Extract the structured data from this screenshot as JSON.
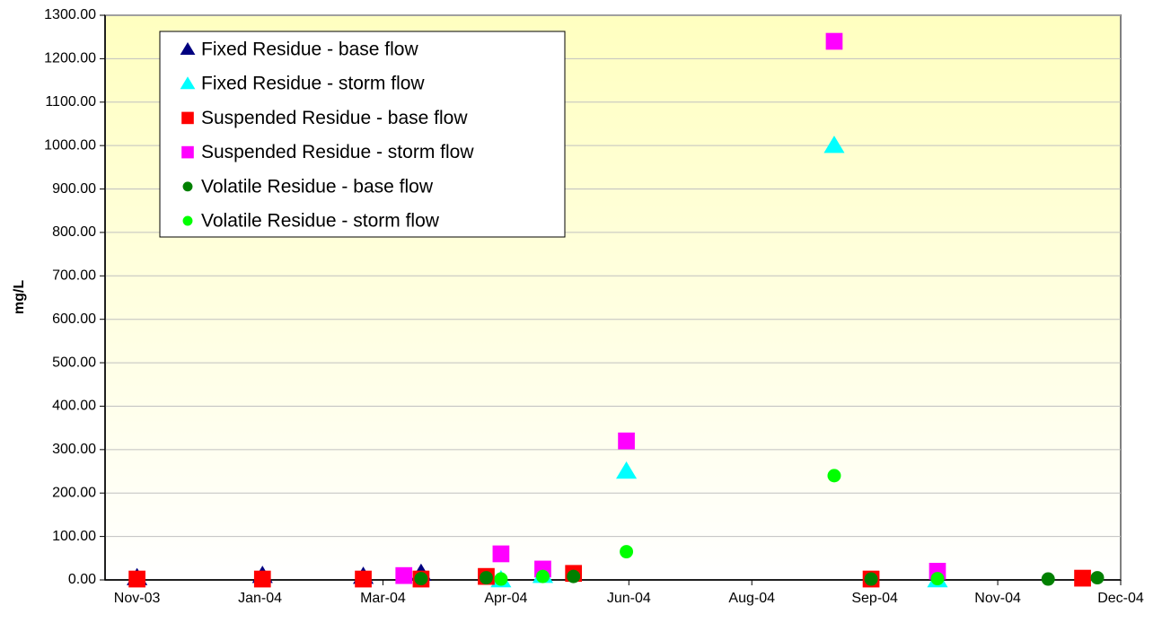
{
  "chart_data": {
    "type": "scatter",
    "ylabel": "mg/L",
    "xlim": [
      -0.26,
      8
    ],
    "xticks": [
      {
        "value": 0,
        "label": "Nov-03"
      },
      {
        "value": 1,
        "label": "Jan-04"
      },
      {
        "value": 2,
        "label": "Mar-04"
      },
      {
        "value": 3,
        "label": "Apr-04"
      },
      {
        "value": 4,
        "label": "Jun-04"
      },
      {
        "value": 5,
        "label": "Aug-04"
      },
      {
        "value": 6,
        "label": "Sep-04"
      },
      {
        "value": 7,
        "label": "Nov-04"
      },
      {
        "value": 8,
        "label": "Dec-04"
      }
    ],
    "ylim": [
      0,
      1300
    ],
    "yticks": [
      {
        "value": 0,
        "label": "0.00"
      },
      {
        "value": 100,
        "label": "100.00"
      },
      {
        "value": 200,
        "label": "200.00"
      },
      {
        "value": 300,
        "label": "300.00"
      },
      {
        "value": 400,
        "label": "400.00"
      },
      {
        "value": 500,
        "label": "500.00"
      },
      {
        "value": 600,
        "label": "600.00"
      },
      {
        "value": 700,
        "label": "700.00"
      },
      {
        "value": 800,
        "label": "800.00"
      },
      {
        "value": 900,
        "label": "900.00"
      },
      {
        "value": 1000,
        "label": "1000.00"
      },
      {
        "value": 1100,
        "label": "1100.00"
      },
      {
        "value": 1200,
        "label": "1200.00"
      },
      {
        "value": 1300,
        "label": "1300.00"
      }
    ],
    "grid": true,
    "legend": "upper left",
    "series": [
      {
        "name": "Fixed Residue - base flow",
        "color": "#000080",
        "marker": "triangle",
        "x": [
          0,
          1.02,
          1.84,
          2.31
        ],
        "values": [
          5,
          10,
          8,
          15
        ]
      },
      {
        "name": "Fixed Residue - storm flow",
        "color": "#00ffff",
        "marker": "triangle",
        "x": [
          2.96,
          3.3,
          3.98,
          5.67,
          6.51
        ],
        "values": [
          0,
          10,
          250,
          1000,
          0
        ]
      },
      {
        "name": "Suspended Residue - base flow",
        "color": "#ff0000",
        "marker": "square",
        "x": [
          0,
          1.02,
          1.84,
          2.31,
          2.84,
          3.55,
          5.97,
          7.69
        ],
        "values": [
          2,
          2,
          2,
          2,
          8,
          15,
          2,
          4
        ]
      },
      {
        "name": "Suspended Residue - storm flow",
        "color": "#ff00ff",
        "marker": "square",
        "x": [
          2.17,
          2.96,
          3.3,
          3.98,
          5.67,
          6.51
        ],
        "values": [
          10,
          60,
          25,
          320,
          1240,
          20
        ]
      },
      {
        "name": "Volatile Residue - base flow",
        "color": "#008000",
        "marker": "circle",
        "x": [
          2.31,
          2.84,
          3.55,
          5.97,
          7.41,
          7.81
        ],
        "values": [
          3,
          5,
          8,
          2,
          2,
          5
        ]
      },
      {
        "name": "Volatile Residue - storm flow",
        "color": "#00ff00",
        "marker": "circle",
        "x": [
          2.96,
          3.3,
          3.98,
          5.67,
          6.51
        ],
        "values": [
          2,
          8,
          65,
          240,
          3
        ]
      }
    ]
  }
}
